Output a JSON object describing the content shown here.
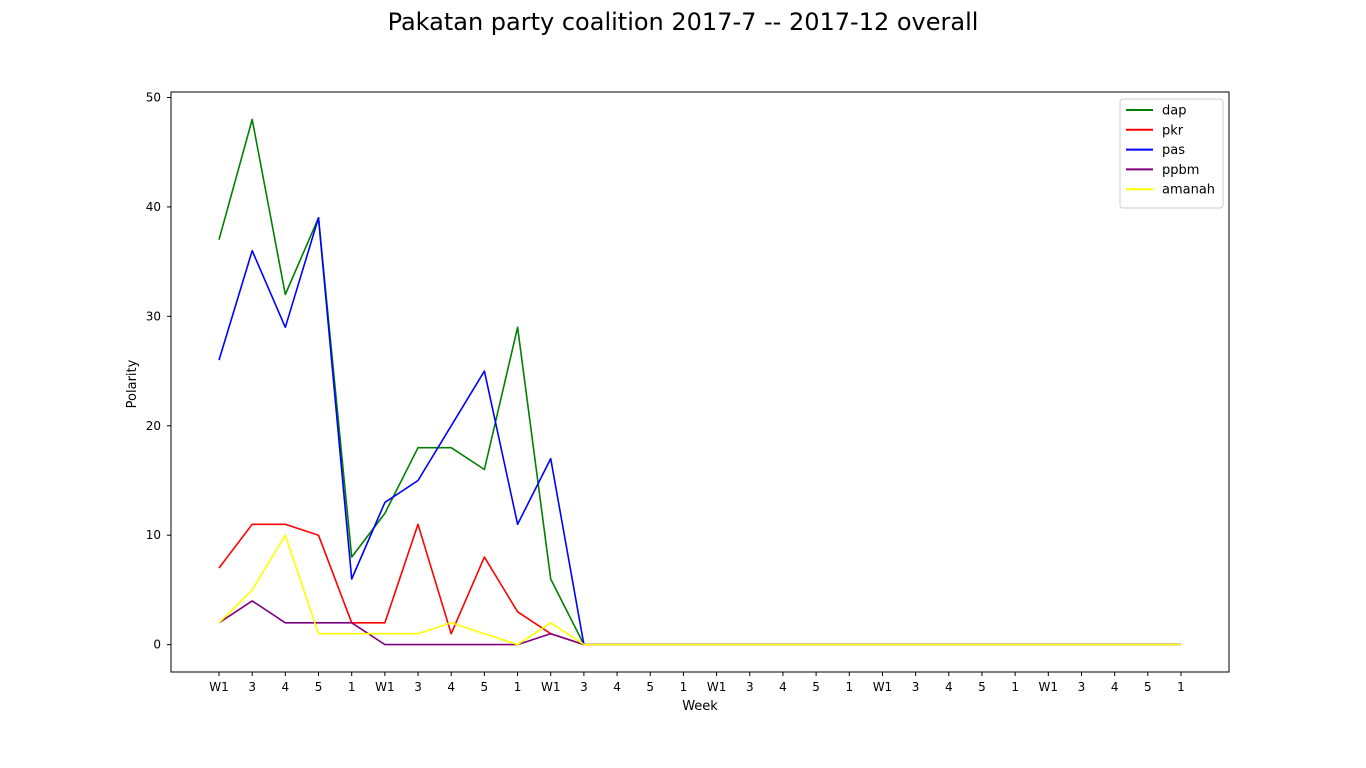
{
  "chart_data": {
    "type": "line",
    "title": "Pakatan party coalition 2017-7 -- 2017-12 overall",
    "xlabel": "Week",
    "ylabel": "Polarity",
    "ylim": [
      -2.5,
      50.5
    ],
    "yticks": [
      0,
      10,
      20,
      30,
      40,
      50
    ],
    "categories": [
      "W1",
      "3",
      "4",
      "5",
      "1",
      "W1",
      "3",
      "4",
      "5",
      "1",
      "W1",
      "3",
      "4",
      "5",
      "1",
      "W1",
      "3",
      "4",
      "5",
      "1",
      "W1",
      "3",
      "4",
      "5",
      "1",
      "W1",
      "3",
      "4",
      "5",
      "1"
    ],
    "legend_position": "top-right",
    "grid": false,
    "series": [
      {
        "name": "dap",
        "color": "#008000",
        "values": [
          37,
          48,
          32,
          39,
          8,
          12,
          18,
          18,
          16,
          29,
          6,
          0,
          0,
          0,
          0,
          0,
          0,
          0,
          0,
          0,
          0,
          0,
          0,
          0,
          0,
          0,
          0,
          0,
          0,
          0
        ]
      },
      {
        "name": "pkr",
        "color": "#ff0000",
        "values": [
          7,
          11,
          11,
          10,
          2,
          2,
          11,
          1,
          8,
          3,
          1,
          0,
          0,
          0,
          0,
          0,
          0,
          0,
          0,
          0,
          0,
          0,
          0,
          0,
          0,
          0,
          0,
          0,
          0,
          0
        ]
      },
      {
        "name": "pas",
        "color": "#0000ff",
        "values": [
          26,
          36,
          29,
          39,
          6,
          13,
          15,
          20,
          25,
          11,
          17,
          0,
          0,
          0,
          0,
          0,
          0,
          0,
          0,
          0,
          0,
          0,
          0,
          0,
          0,
          0,
          0,
          0,
          0,
          0
        ]
      },
      {
        "name": "ppbm",
        "color": "#800080",
        "values": [
          2,
          4,
          2,
          2,
          2,
          0,
          0,
          0,
          0,
          0,
          1,
          0,
          0,
          0,
          0,
          0,
          0,
          0,
          0,
          0,
          0,
          0,
          0,
          0,
          0,
          0,
          0,
          0,
          0,
          0
        ]
      },
      {
        "name": "amanah",
        "color": "#ffff00",
        "values": [
          2,
          5,
          10,
          1,
          1,
          1,
          1,
          2,
          1,
          0,
          2,
          0,
          0,
          0,
          0,
          0,
          0,
          0,
          0,
          0,
          0,
          0,
          0,
          0,
          0,
          0,
          0,
          0,
          0,
          0
        ]
      }
    ]
  }
}
